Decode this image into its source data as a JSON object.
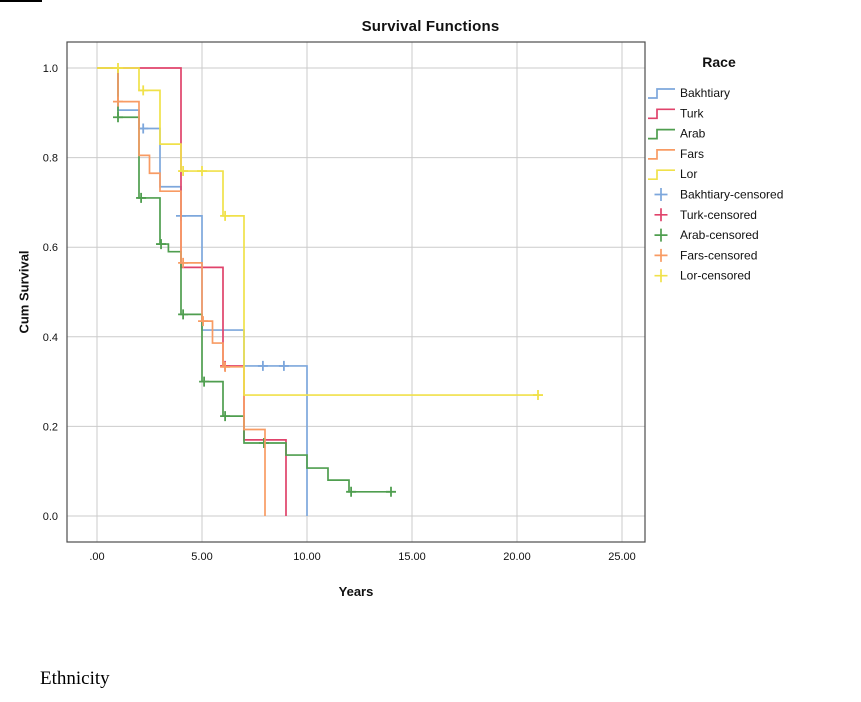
{
  "page": {
    "bottom_text": "Ethnicity"
  },
  "chart_data": {
    "type": "line",
    "subtype": "kaplan-meier-step",
    "title": "Survival Functions",
    "xlabel": "Years",
    "ylabel": "Cum Survival",
    "legend_title": "Race",
    "grid": true,
    "legend_position": "right",
    "xlim": [
      0,
      25
    ],
    "ylim": [
      0.0,
      1.0
    ],
    "x_tick_values": [
      0,
      5,
      10,
      15,
      20,
      25
    ],
    "x_tick_labels": [
      ".00",
      "5.00",
      "10.00",
      "15.00",
      "20.00",
      "25.00"
    ],
    "y_tick_values": [
      0.0,
      0.2,
      0.4,
      0.6,
      0.8,
      1.0
    ],
    "y_tick_labels": [
      "0.0",
      "0.2",
      "0.4",
      "0.6",
      "0.8",
      "1.0"
    ],
    "series": [
      {
        "name": "Bakhtiary",
        "censored_name": "Bakhtiary-censored",
        "color": "#7DA7DC",
        "start_time": 0,
        "start_value": 1.0,
        "steps": [
          [
            1,
            0.906
          ],
          [
            2,
            0.865
          ],
          [
            3,
            0.735
          ],
          [
            4,
            0.67
          ],
          [
            5,
            0.415
          ],
          [
            7,
            0.335
          ],
          [
            10,
            0
          ]
        ],
        "end_time": 10,
        "censored": [
          [
            2.2,
            0.865
          ],
          [
            4,
            0.67
          ],
          [
            7.9,
            0.335
          ],
          [
            8.9,
            0.335
          ]
        ]
      },
      {
        "name": "Turk",
        "censored_name": "Turk-censored",
        "color": "#E0436B",
        "start_time": 0,
        "start_value": 1.0,
        "steps": [
          [
            4,
            0.555
          ],
          [
            6,
            0.335
          ],
          [
            7,
            0.17
          ],
          [
            9,
            0
          ]
        ],
        "end_time": 9,
        "censored": [
          [
            6.1,
            0.335
          ]
        ]
      },
      {
        "name": "Arab",
        "censored_name": "Arab-censored",
        "color": "#4F9E4F",
        "start_time": 0,
        "start_value": 1.0,
        "steps": [
          [
            1,
            0.89
          ],
          [
            2,
            0.71
          ],
          [
            3,
            0.607
          ],
          [
            3.4,
            0.59
          ],
          [
            4,
            0.45
          ],
          [
            5,
            0.3
          ],
          [
            6,
            0.223
          ],
          [
            7,
            0.163
          ],
          [
            9,
            0.136
          ],
          [
            10,
            0.107
          ],
          [
            11,
            0.08
          ],
          [
            12,
            0.054
          ]
        ],
        "end_time": 14,
        "censored": [
          [
            1,
            0.89
          ],
          [
            2.1,
            0.71
          ],
          [
            3.05,
            0.607
          ],
          [
            4.1,
            0.45
          ],
          [
            5.1,
            0.3
          ],
          [
            6.1,
            0.223
          ],
          [
            7.95,
            0.163
          ],
          [
            12.1,
            0.054
          ],
          [
            14,
            0.054
          ]
        ]
      },
      {
        "name": "Fars",
        "censored_name": "Fars-censored",
        "color": "#F89B63",
        "start_time": 0,
        "start_value": 1.0,
        "steps": [
          [
            1,
            0.925
          ],
          [
            2,
            0.805
          ],
          [
            2.5,
            0.765
          ],
          [
            3,
            0.725
          ],
          [
            4,
            0.565
          ],
          [
            5,
            0.435
          ],
          [
            5.5,
            0.386
          ],
          [
            6,
            0.333
          ],
          [
            7,
            0.193
          ],
          [
            8,
            0
          ]
        ],
        "end_time": 8,
        "censored": [
          [
            1,
            0.925
          ],
          [
            4.1,
            0.565
          ],
          [
            5.05,
            0.435
          ],
          [
            6.1,
            0.333
          ]
        ]
      },
      {
        "name": "Lor",
        "censored_name": "Lor-censored",
        "color": "#F0E14A",
        "start_time": 0,
        "start_value": 1.0,
        "steps": [
          [
            2,
            0.95
          ],
          [
            3,
            0.83
          ],
          [
            4,
            0.77
          ],
          [
            6,
            0.67
          ],
          [
            7,
            0.27
          ]
        ],
        "end_time": 21,
        "censored": [
          [
            1,
            1
          ],
          [
            2.2,
            0.95
          ],
          [
            4.1,
            0.77
          ],
          [
            5,
            0.77
          ],
          [
            6.1,
            0.67
          ],
          [
            21,
            0.27
          ]
        ]
      }
    ]
  }
}
